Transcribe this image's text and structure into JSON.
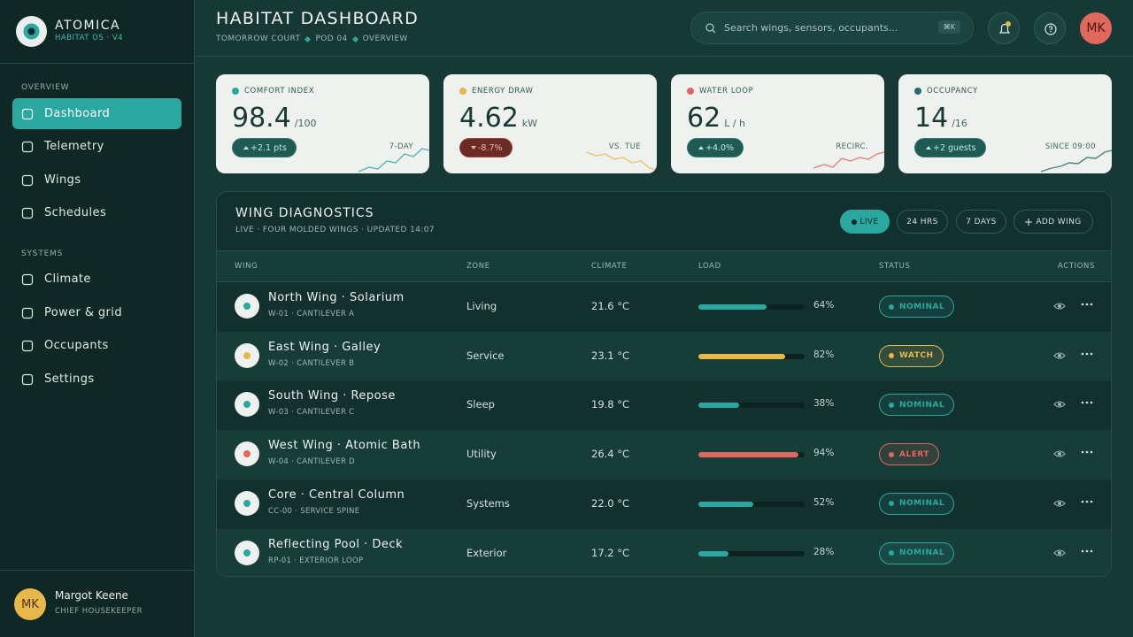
{
  "brand": {
    "name": "ATOMICA",
    "sub": "HABITAT OS · V4"
  },
  "nav": {
    "sections": [
      {
        "title": "OVERVIEW",
        "items": [
          "Dashboard",
          "Telemetry",
          "Wings",
          "Schedules"
        ]
      },
      {
        "title": "SYSTEMS",
        "items": [
          "Climate",
          "Power & grid",
          "Occupants",
          "Settings"
        ]
      }
    ]
  },
  "user": {
    "initials": "MK",
    "name": "Margot Keene",
    "role": "CHIEF HOUSEKEEPER"
  },
  "header": {
    "title": "HABITAT DASHBOARD",
    "breadcrumb": [
      "TOMORROW COURT",
      "POD 04",
      "OVERVIEW"
    ],
    "search": "Search wings, sensors, occupants...",
    "shortcut": "⌘K",
    "avatar": "MK"
  },
  "kpis": [
    {
      "label": "COMFORT INDEX",
      "value": "98.4",
      "unit": "/100",
      "delta": "+2.1 pts",
      "note": "7-DAY",
      "color": "#2aa8a0",
      "trend": "up"
    },
    {
      "label": "ENERGY DRAW",
      "value": "4.62",
      "unit": "kW",
      "delta": "-8.7%",
      "note": "VS. TUE",
      "color": "#e8b84a",
      "trend": "down"
    },
    {
      "label": "WATER LOOP",
      "value": "62",
      "unit": "L / h",
      "delta": "+4.0%",
      "note": "RECIRC.",
      "color": "#e0685c",
      "trend": "up"
    },
    {
      "label": "OCCUPANCY",
      "value": "14",
      "unit": "/16",
      "delta": "+2 guests",
      "note": "SINCE 09:00",
      "color": "#1f6e68",
      "trend": "up"
    }
  ],
  "table": {
    "title": "WING DIAGNOSTICS",
    "subtitle": "LIVE · FOUR MOLDED WINGS · UPDATED 14:07",
    "filters": [
      "LIVE",
      "24 HRS",
      "7 DAYS"
    ],
    "add": "ADD WING",
    "columns": [
      "WING",
      "ZONE",
      "CLIMATE",
      "LOAD",
      "STATUS",
      "ACTIONS"
    ],
    "rows": [
      {
        "name": "North Wing · Solarium",
        "code": "W-01 · CANTILEVER A",
        "zone": "Living",
        "climate": "21.6 °C",
        "load": {
          "value": 64,
          "label": "64%"
        },
        "status": "NOMINAL",
        "color": "#2aa8a0"
      },
      {
        "name": "East Wing · Galley",
        "code": "W-02 · CANTILEVER B",
        "zone": "Service",
        "climate": "23.1 °C",
        "load": {
          "value": 82,
          "label": "82%"
        },
        "status": "WATCH",
        "color": "#e8b84a"
      },
      {
        "name": "South Wing · Repose",
        "code": "W-03 · CANTILEVER C",
        "zone": "Sleep",
        "climate": "19.8 °C",
        "load": {
          "value": 38,
          "label": "38%"
        },
        "status": "NOMINAL",
        "color": "#2aa8a0"
      },
      {
        "name": "West Wing · Atomic Bath",
        "code": "W-04 · CANTILEVER D",
        "zone": "Utility",
        "climate": "26.4 °C",
        "load": {
          "value": 94,
          "label": "94%"
        },
        "status": "ALERT",
        "color": "#e0685c"
      },
      {
        "name": "Core · Central Column",
        "code": "CC-00 · SERVICE SPINE",
        "zone": "Systems",
        "climate": "22.0 °C",
        "load": {
          "value": 52,
          "label": "52%"
        },
        "status": "NOMINAL",
        "color": "#2aa8a0"
      },
      {
        "name": "Reflecting Pool · Deck",
        "code": "RP-01 · EXTERIOR LOOP",
        "zone": "Exterior",
        "climate": "17.2 °C",
        "load": {
          "value": 28,
          "label": "28%"
        },
        "status": "NOMINAL",
        "color": "#2aa8a0"
      }
    ]
  }
}
